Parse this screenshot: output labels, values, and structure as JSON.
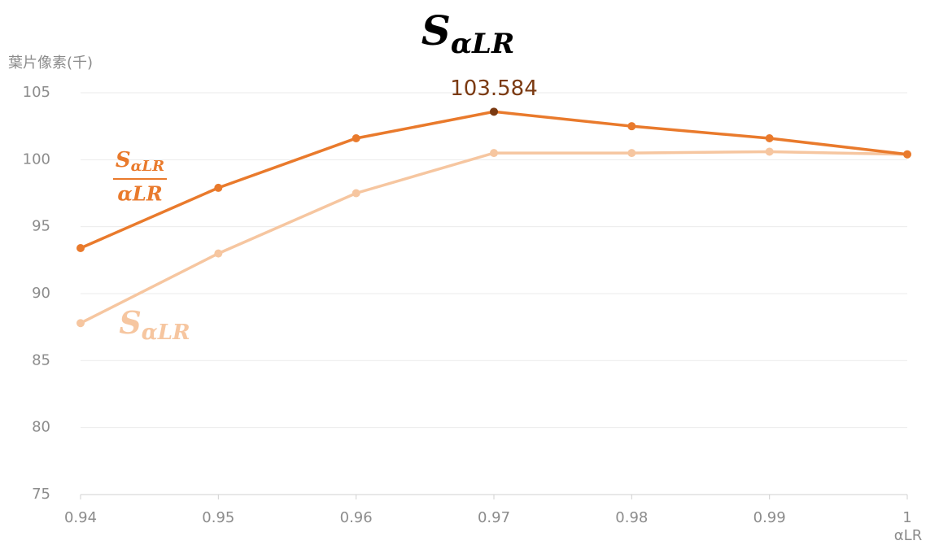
{
  "chart_data": {
    "type": "line",
    "title": {
      "text": "S",
      "subscript": "αLR"
    },
    "y_label": "葉片像素(千)",
    "x_label": "αLR",
    "x": [
      0.94,
      0.95,
      0.96,
      0.97,
      0.98,
      0.99,
      1
    ],
    "xlim": [
      0.94,
      1
    ],
    "xticks": [
      0.94,
      0.95,
      0.96,
      0.97,
      0.98,
      0.99,
      1
    ],
    "ylim": [
      75,
      105
    ],
    "yticks": [
      75,
      80,
      85,
      90,
      95,
      100,
      105
    ],
    "grid": true,
    "series": [
      {
        "name": "S",
        "name_subscript": "αLR",
        "name_denominator": "αLR",
        "color": "#e97a2c",
        "values": [
          93.4,
          97.9,
          101.6,
          103.584,
          102.5,
          101.6,
          100.4
        ]
      },
      {
        "name": "S",
        "name_subscript": "αLR",
        "color": "#f6c6a0",
        "values": [
          87.8,
          93.0,
          97.5,
          100.5,
          100.5,
          100.6,
          100.4
        ]
      }
    ],
    "highlight": {
      "series": 0,
      "index": 3,
      "color": "#7b3a12"
    }
  }
}
